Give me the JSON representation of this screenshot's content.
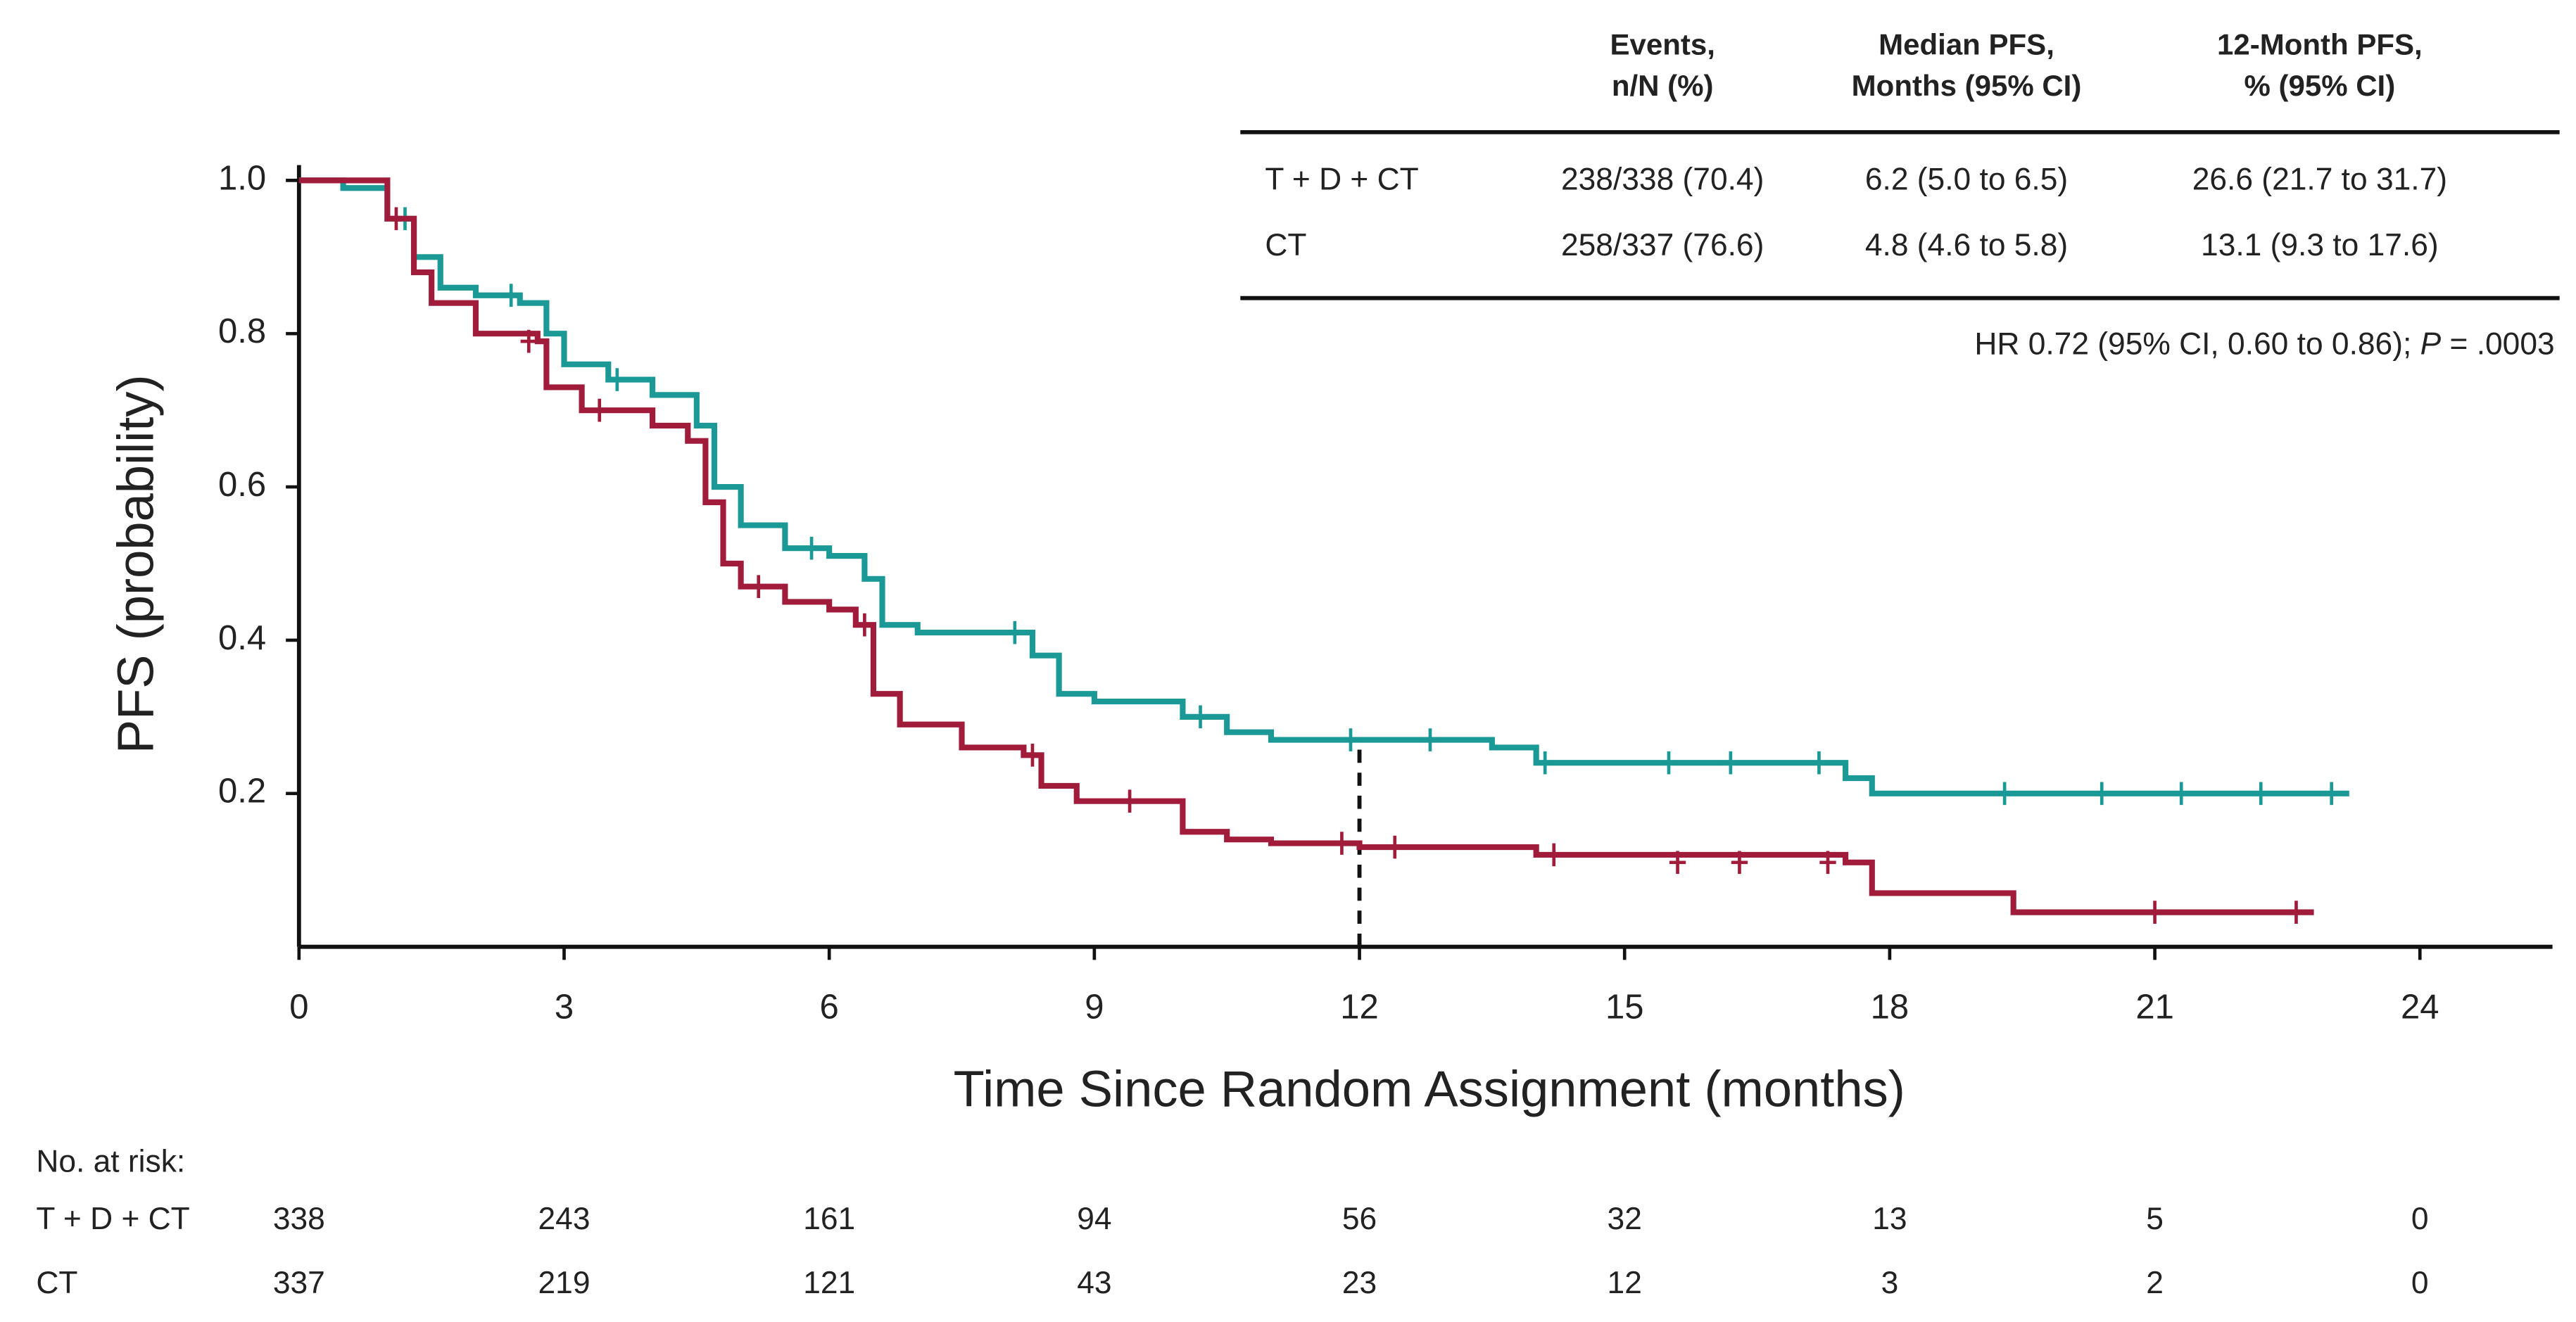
{
  "chart_data": {
    "type": "line",
    "step": true,
    "xlabel": "Time Since Random Assignment (months)",
    "ylabel": "PFS (probability)",
    "xlim": [
      0,
      25.5
    ],
    "ylim": [
      0,
      1.02
    ],
    "xticks": [
      0,
      3,
      6,
      9,
      12,
      15,
      18,
      21,
      24
    ],
    "yticks": [
      0.2,
      0.4,
      0.6,
      0.8,
      {
        "value": 1,
        "label": "1.0"
      }
    ],
    "series": [
      {
        "name": "T + D + CT",
        "color": "#1b9996",
        "x": [
          0,
          0.5,
          1,
          1.3,
          1.6,
          2,
          2.5,
          2.8,
          3,
          3.5,
          4,
          4.5,
          4.7,
          5,
          5.5,
          6,
          6.4,
          6.6,
          7,
          8.3,
          8.6,
          9,
          10,
          10.5,
          11,
          13.5,
          14,
          17.5,
          17.8,
          23.2
        ],
        "values": [
          1.0,
          0.99,
          0.95,
          0.9,
          0.86,
          0.85,
          0.84,
          0.8,
          0.76,
          0.74,
          0.72,
          0.68,
          0.6,
          0.55,
          0.52,
          0.51,
          0.48,
          0.42,
          0.41,
          0.38,
          0.33,
          0.32,
          0.3,
          0.28,
          0.27,
          0.26,
          0.24,
          0.22,
          0.2,
          0.2
        ],
        "censored": {
          "x": [
            1.2,
            2.4,
            3.6,
            5.8,
            8.1,
            10.2,
            11.9,
            12.8,
            14.1,
            15.5,
            16.2,
            17.2,
            19.3,
            20.4,
            21.3,
            22.2,
            23.0
          ],
          "y": [
            0.95,
            0.85,
            0.74,
            0.52,
            0.41,
            0.3,
            0.27,
            0.27,
            0.24,
            0.24,
            0.24,
            0.24,
            0.2,
            0.2,
            0.2,
            0.2,
            0.2
          ]
        }
      },
      {
        "name": "CT",
        "color": "#a11c3a",
        "x": [
          0,
          1,
          1.3,
          1.5,
          2,
          2.7,
          2.8,
          3.2,
          4,
          4.4,
          4.6,
          4.8,
          5,
          5.5,
          6,
          6.3,
          6.5,
          6.8,
          7.5,
          8.2,
          8.4,
          8.8,
          10,
          10.5,
          11,
          12,
          14,
          17.5,
          17.8,
          19.4,
          22.8
        ],
        "values": [
          1.0,
          0.95,
          0.88,
          0.84,
          0.8,
          0.79,
          0.73,
          0.7,
          0.68,
          0.66,
          0.58,
          0.5,
          0.47,
          0.45,
          0.44,
          0.42,
          0.33,
          0.29,
          0.26,
          0.25,
          0.21,
          0.19,
          0.15,
          0.14,
          0.135,
          0.13,
          0.12,
          0.11,
          0.07,
          0.045,
          0.045
        ],
        "censored": {
          "x": [
            1.1,
            2.6,
            3.4,
            5.2,
            6.4,
            8.3,
            9.4,
            11.8,
            12.4,
            14.2,
            15.6,
            16.3,
            17.3,
            21.0,
            22.6
          ],
          "y": [
            0.95,
            0.79,
            0.7,
            0.47,
            0.42,
            0.25,
            0.19,
            0.135,
            0.13,
            0.12,
            0.11,
            0.11,
            0.11,
            0.045,
            0.045
          ]
        }
      }
    ],
    "reference_line": {
      "x": 12,
      "y": 0.27
    }
  },
  "summary_table": {
    "headers": [
      [
        "Events,",
        "n/N (%)"
      ],
      [
        "Median PFS,",
        "Months (95% CI)"
      ],
      [
        "12-Month PFS,",
        "% (95% CI)"
      ]
    ],
    "rows": [
      [
        "T + D + CT",
        "238/338 (70.4)",
        "6.2 (5.0 to 6.5)",
        "26.6 (21.7 to 31.7)"
      ],
      [
        "CT",
        "258/337 (76.6)",
        "4.8 (4.6 to 5.8)",
        "13.1 (9.3 to 17.6)"
      ]
    ],
    "hr_note": [
      "HR 0.72 (95% CI, 0.60 to 0.86); ",
      "P",
      " = .0003"
    ]
  },
  "risk_table": {
    "title": "No. at risk:",
    "times": [
      0,
      3,
      6,
      9,
      12,
      15,
      18,
      21,
      24
    ],
    "rows": [
      {
        "label": "T + D + CT",
        "counts": [
          338,
          243,
          161,
          94,
          56,
          32,
          13,
          5,
          0
        ]
      },
      {
        "label": "CT",
        "counts": [
          337,
          219,
          121,
          43,
          23,
          12,
          3,
          2,
          0
        ]
      }
    ]
  }
}
